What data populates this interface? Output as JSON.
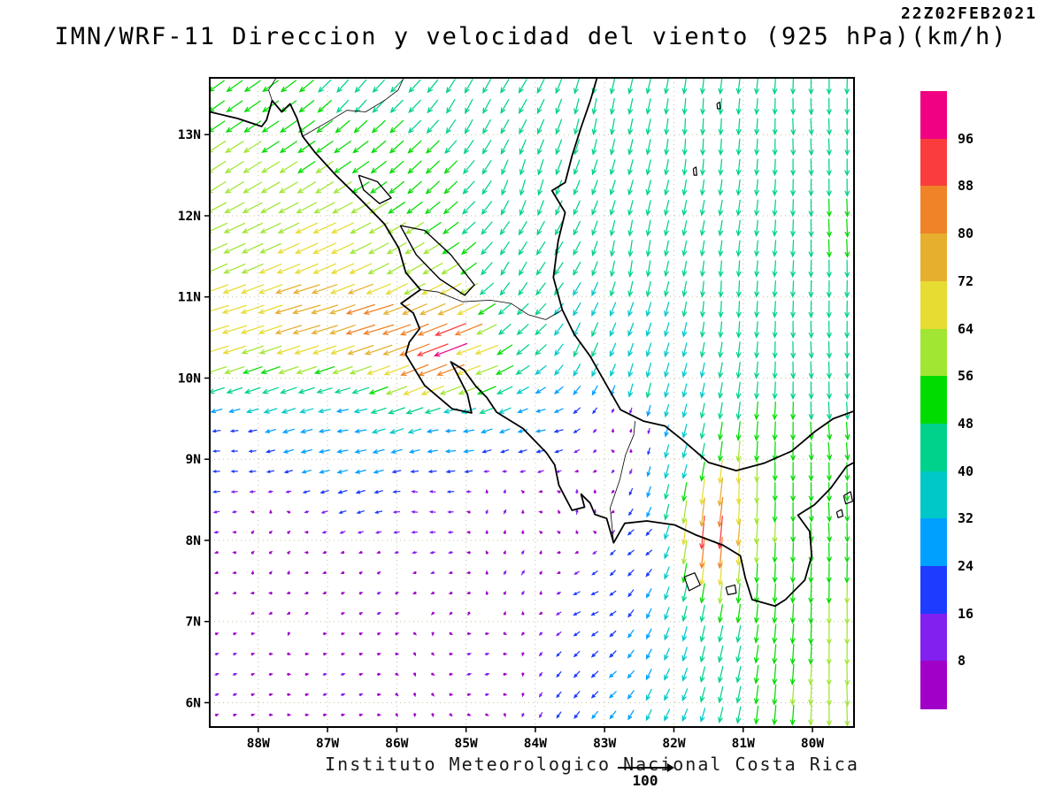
{
  "header": {
    "timestamp": "22Z02FEB2021",
    "title": "IMN/WRF-11 Direccion y velocidad del viento (925 hPa)(km/h)"
  },
  "footer": {
    "credit": "Instituto Meteorologico Nacional Costa Rica",
    "reference_value": "100"
  },
  "chart_data": {
    "type": "vector-field",
    "title": "IMN/WRF-11 Direccion y velocidad del viento (925 hPa)(km/h)",
    "timestamp": "22Z02FEB2021",
    "variable": "wind direction and speed",
    "level": "925 hPa",
    "units": "km/h",
    "x_axis": {
      "ticks": [
        "88W",
        "87W",
        "86W",
        "85W",
        "84W",
        "83W",
        "82W",
        "81W",
        "80W"
      ],
      "range": [
        -88.7,
        -79.4
      ]
    },
    "y_axis": {
      "ticks": [
        "13N",
        "12N",
        "11N",
        "10N",
        "9N",
        "8N",
        "7N",
        "6N"
      ],
      "range": [
        5.7,
        13.7
      ]
    },
    "colorbar": {
      "levels": [
        8,
        16,
        24,
        32,
        40,
        48,
        56,
        64,
        72,
        80,
        88,
        96
      ],
      "colors": [
        "#a000c8",
        "#8220f0",
        "#1e3cff",
        "#00a0ff",
        "#00c8c8",
        "#00d28c",
        "#00dc00",
        "#a0e632",
        "#e6dc32",
        "#e6af2d",
        "#f08228",
        "#fa3c3c",
        "#f00082"
      ]
    },
    "reference_vector": 100,
    "grid": {
      "lon_start": -88.6,
      "lon_step": 0.26,
      "cols": 36,
      "lat_start": 5.85,
      "lat_step": 0.25,
      "rows": 32
    },
    "control_points": [
      [
        -88.6,
        10.7,
        -68,
        -20
      ],
      [
        -87.3,
        10.8,
        -76,
        -22
      ],
      [
        -86.3,
        10.7,
        -83,
        -25
      ],
      [
        -85.55,
        10.35,
        -85,
        -32
      ],
      [
        -85.15,
        10.42,
        -92,
        -35
      ],
      [
        -84.85,
        10.3,
        -62,
        -22
      ],
      [
        -88.6,
        11.6,
        -58,
        -26
      ],
      [
        -87.0,
        11.7,
        -62,
        -28
      ],
      [
        -85.9,
        11.4,
        -52,
        -30
      ],
      [
        -88.6,
        12.6,
        -50,
        -32
      ],
      [
        -87.0,
        12.7,
        -46,
        -32
      ],
      [
        -85.6,
        12.6,
        -36,
        -34
      ],
      [
        -88.6,
        13.5,
        -42,
        -30
      ],
      [
        -86.6,
        13.5,
        -30,
        -34
      ],
      [
        -84.9,
        13.3,
        -20,
        -38
      ],
      [
        -84.1,
        12.4,
        -12,
        -42
      ],
      [
        -84.3,
        11.3,
        -20,
        -36
      ],
      [
        -84.3,
        10.6,
        -30,
        -28
      ],
      [
        -83.0,
        13.2,
        -8,
        -43
      ],
      [
        -81.6,
        13.0,
        -2,
        -44
      ],
      [
        -80.0,
        13.0,
        2,
        -45
      ],
      [
        -79.6,
        11.8,
        2,
        -49
      ],
      [
        -82.6,
        11.5,
        -6,
        -44
      ],
      [
        -81.2,
        11.0,
        -2,
        -44
      ],
      [
        -80.0,
        10.3,
        2,
        -46
      ],
      [
        -83.2,
        10.4,
        -16,
        -38
      ],
      [
        -82.4,
        9.9,
        -10,
        -40
      ],
      [
        -79.7,
        9.3,
        4,
        -48
      ],
      [
        -81.9,
        9.0,
        -10,
        -36
      ],
      [
        -81.35,
        8.45,
        -10,
        -82
      ],
      [
        -81.45,
        8.05,
        -8,
        -95
      ],
      [
        -81.05,
        8.55,
        -2,
        -68
      ],
      [
        -80.5,
        8.7,
        0,
        -50
      ],
      [
        -79.9,
        8.2,
        3,
        -52
      ],
      [
        -80.6,
        7.6,
        -2,
        -52
      ],
      [
        -79.6,
        7.0,
        0,
        -58
      ],
      [
        -79.5,
        6.1,
        2,
        -62
      ],
      [
        -80.3,
        6.2,
        -4,
        -56
      ],
      [
        -81.3,
        6.5,
        -10,
        -44
      ],
      [
        -82.2,
        6.1,
        -14,
        -30
      ],
      [
        -86.8,
        9.35,
        -28,
        -4
      ],
      [
        -85.2,
        9.25,
        -26,
        -2
      ],
      [
        -83.9,
        9.35,
        -24,
        -4
      ],
      [
        -88.4,
        9.0,
        -16,
        0
      ],
      [
        -87.8,
        8.0,
        5,
        4
      ],
      [
        -86.3,
        7.2,
        8,
        4
      ],
      [
        -84.8,
        6.4,
        10,
        3
      ],
      [
        -88.5,
        6.3,
        9,
        4
      ],
      [
        -86.8,
        6.2,
        9,
        3
      ],
      [
        -84.2,
        7.6,
        7,
        11
      ],
      [
        -83.3,
        8.4,
        2,
        13
      ],
      [
        -83.2,
        7.2,
        -18,
        -8
      ],
      [
        -82.5,
        7.9,
        -16,
        -12
      ],
      [
        -85.6,
        8.5,
        -14,
        2
      ],
      [
        -84.5,
        8.4,
        5,
        10
      ],
      [
        -82.9,
        6.3,
        -18,
        -16
      ],
      [
        -82.7,
        9.3,
        2,
        8
      ]
    ]
  },
  "map": {
    "coastlines": [
      {
        "name": "pacific-coastline",
        "points": [
          [
            -88.7,
            13.28
          ],
          [
            -88.3,
            13.2
          ],
          [
            -87.95,
            13.1
          ],
          [
            -87.88,
            13.18
          ],
          [
            -87.8,
            13.42
          ],
          [
            -87.66,
            13.28
          ],
          [
            -87.54,
            13.38
          ],
          [
            -87.44,
            13.2
          ],
          [
            -87.36,
            12.98
          ],
          [
            -87.18,
            12.78
          ],
          [
            -86.88,
            12.5
          ],
          [
            -86.52,
            12.2
          ],
          [
            -86.18,
            11.9
          ],
          [
            -85.97,
            11.6
          ],
          [
            -85.87,
            11.3
          ],
          [
            -85.66,
            11.09
          ],
          [
            -85.94,
            10.92
          ],
          [
            -85.76,
            10.8
          ],
          [
            -85.67,
            10.61
          ],
          [
            -85.82,
            10.44
          ],
          [
            -85.87,
            10.29
          ],
          [
            -85.6,
            9.91
          ],
          [
            -85.2,
            9.62
          ],
          [
            -84.92,
            9.57
          ],
          [
            -84.98,
            9.8
          ],
          [
            -85.11,
            10.02
          ],
          [
            -85.22,
            10.2
          ],
          [
            -85.03,
            10.1
          ],
          [
            -84.86,
            9.9
          ],
          [
            -84.7,
            9.76
          ],
          [
            -84.56,
            9.58
          ],
          [
            -84.18,
            9.38
          ],
          [
            -83.84,
            9.08
          ],
          [
            -83.72,
            8.93
          ],
          [
            -83.66,
            8.68
          ],
          [
            -83.47,
            8.37
          ],
          [
            -83.29,
            8.41
          ],
          [
            -83.34,
            8.57
          ],
          [
            -83.21,
            8.46
          ],
          [
            -83.14,
            8.32
          ],
          [
            -82.97,
            8.27
          ],
          [
            -82.87,
            7.97
          ],
          [
            -82.71,
            8.21
          ],
          [
            -82.39,
            8.24
          ],
          [
            -81.99,
            8.19
          ],
          [
            -81.69,
            8.07
          ],
          [
            -81.29,
            7.94
          ],
          [
            -81.04,
            7.81
          ],
          [
            -80.97,
            7.54
          ],
          [
            -80.87,
            7.27
          ],
          [
            -80.54,
            7.19
          ],
          [
            -80.39,
            7.27
          ],
          [
            -80.11,
            7.51
          ],
          [
            -80.01,
            7.81
          ],
          [
            -80.04,
            8.11
          ],
          [
            -80.21,
            8.31
          ],
          [
            -79.97,
            8.44
          ],
          [
            -79.74,
            8.64
          ],
          [
            -79.51,
            8.91
          ],
          [
            -79.38,
            8.97
          ]
        ]
      },
      {
        "name": "caribbean-coastline",
        "points": [
          [
            -79.38,
            9.6
          ],
          [
            -79.7,
            9.5
          ],
          [
            -79.95,
            9.35
          ],
          [
            -80.3,
            9.1
          ],
          [
            -80.7,
            8.95
          ],
          [
            -81.1,
            8.86
          ],
          [
            -81.5,
            8.96
          ],
          [
            -81.88,
            9.24
          ],
          [
            -82.13,
            9.41
          ],
          [
            -82.44,
            9.47
          ],
          [
            -82.77,
            9.61
          ],
          [
            -83.01,
            9.97
          ],
          [
            -83.21,
            10.27
          ],
          [
            -83.44,
            10.54
          ],
          [
            -83.61,
            10.84
          ],
          [
            -83.74,
            11.24
          ],
          [
            -83.67,
            11.69
          ],
          [
            -83.57,
            12.04
          ],
          [
            -83.76,
            12.31
          ],
          [
            -83.57,
            12.41
          ],
          [
            -83.47,
            12.74
          ],
          [
            -83.34,
            13.09
          ],
          [
            -83.21,
            13.41
          ],
          [
            -83.11,
            13.7
          ]
        ]
      }
    ],
    "lakes": [
      {
        "name": "lake-nicaragua",
        "points": [
          [
            -85.95,
            11.88
          ],
          [
            -85.6,
            11.82
          ],
          [
            -85.22,
            11.52
          ],
          [
            -84.88,
            11.15
          ],
          [
            -85.02,
            11.02
          ],
          [
            -85.38,
            11.22
          ],
          [
            -85.72,
            11.52
          ],
          [
            -85.95,
            11.88
          ]
        ]
      },
      {
        "name": "lake-managua",
        "points": [
          [
            -86.55,
            12.5
          ],
          [
            -86.28,
            12.42
          ],
          [
            -86.08,
            12.22
          ],
          [
            -86.25,
            12.15
          ],
          [
            -86.48,
            12.32
          ],
          [
            -86.55,
            12.5
          ]
        ]
      }
    ],
    "islands": [
      {
        "name": "coiba-island",
        "points": [
          [
            -81.85,
            7.55
          ],
          [
            -81.7,
            7.6
          ],
          [
            -81.62,
            7.45
          ],
          [
            -81.78,
            7.38
          ],
          [
            -81.85,
            7.55
          ]
        ]
      },
      {
        "name": "cebaco-island",
        "points": [
          [
            -81.25,
            7.42
          ],
          [
            -81.12,
            7.45
          ],
          [
            -81.1,
            7.35
          ],
          [
            -81.22,
            7.33
          ],
          [
            -81.25,
            7.42
          ]
        ]
      },
      {
        "name": "pearl-islands",
        "points": [
          [
            -79.55,
            8.55
          ],
          [
            -79.45,
            8.6
          ],
          [
            -79.42,
            8.48
          ],
          [
            -79.52,
            8.45
          ],
          [
            -79.55,
            8.55
          ]
        ]
      },
      {
        "name": "pearl-islands-south",
        "points": [
          [
            -79.65,
            8.35
          ],
          [
            -79.58,
            8.38
          ],
          [
            -79.56,
            8.3
          ],
          [
            -79.63,
            8.28
          ],
          [
            -79.65,
            8.35
          ]
        ]
      },
      {
        "name": "san-andres-island",
        "points": [
          [
            -81.72,
            12.58
          ],
          [
            -81.68,
            12.6
          ],
          [
            -81.67,
            12.5
          ],
          [
            -81.71,
            12.5
          ],
          [
            -81.72,
            12.58
          ]
        ]
      },
      {
        "name": "providencia-island",
        "points": [
          [
            -81.38,
            13.38
          ],
          [
            -81.34,
            13.4
          ],
          [
            -81.33,
            13.32
          ],
          [
            -81.37,
            13.32
          ],
          [
            -81.38,
            13.38
          ]
        ]
      }
    ],
    "borders": [
      {
        "name": "honduras-nicaragua-border",
        "points": [
          [
            -87.36,
            12.98
          ],
          [
            -86.95,
            13.18
          ],
          [
            -86.72,
            13.3
          ],
          [
            -86.45,
            13.28
          ],
          [
            -86.18,
            13.42
          ],
          [
            -85.98,
            13.55
          ],
          [
            -85.9,
            13.7
          ]
        ]
      },
      {
        "name": "el-salvador-honduras-border",
        "points": [
          [
            -87.8,
            13.42
          ],
          [
            -87.85,
            13.55
          ],
          [
            -87.74,
            13.7
          ]
        ]
      },
      {
        "name": "nicaragua-costa-rica-border",
        "points": [
          [
            -85.66,
            11.09
          ],
          [
            -85.4,
            11.06
          ],
          [
            -85.05,
            10.94
          ],
          [
            -84.65,
            10.96
          ],
          [
            -84.35,
            10.92
          ],
          [
            -84.1,
            10.78
          ],
          [
            -83.85,
            10.72
          ],
          [
            -83.61,
            10.84
          ]
        ]
      },
      {
        "name": "costa-rica-panama-border",
        "points": [
          [
            -82.87,
            7.97
          ],
          [
            -82.92,
            8.4
          ],
          [
            -82.78,
            8.75
          ],
          [
            -82.7,
            9.05
          ],
          [
            -82.58,
            9.3
          ],
          [
            -82.56,
            9.47
          ]
        ]
      }
    ]
  }
}
